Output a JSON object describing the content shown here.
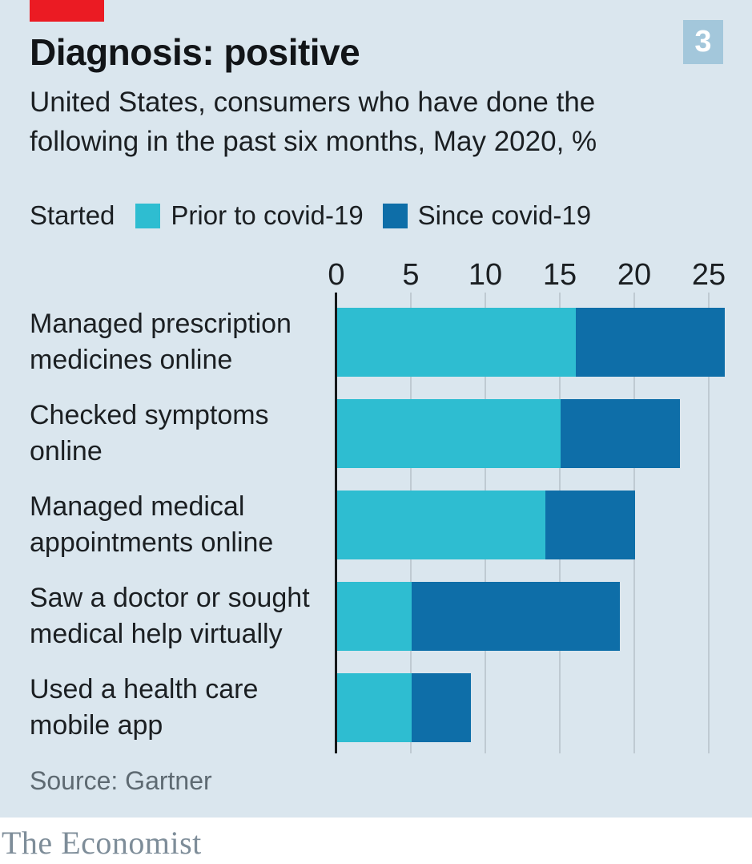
{
  "header": {
    "badge": "3",
    "title": "Diagnosis: positive",
    "subtitle": "United States, consumers who have done the following in the past six months, May 2020, %"
  },
  "legend": {
    "prefix": "Started",
    "items": [
      {
        "label": "Prior to covid-19"
      },
      {
        "label": "Since covid-19"
      }
    ]
  },
  "chart_data": {
    "type": "bar",
    "orientation": "horizontal",
    "stacked": true,
    "title": "Diagnosis: positive",
    "subtitle": "United States, consumers who have done the following in the past six months, May 2020, %",
    "categories": [
      "Managed prescription medicines online",
      "Checked symptoms online",
      "Managed medical appointments online",
      "Saw a doctor or sought medical help virtually",
      "Used a health care mobile app"
    ],
    "category_lines": [
      [
        "Managed prescription",
        "medicines online"
      ],
      [
        "Checked symptoms",
        "online"
      ],
      [
        "Managed medical",
        "appointments online"
      ],
      [
        "Saw a doctor or sought",
        "medical help virtually"
      ],
      [
        "Used a health care",
        "mobile app"
      ]
    ],
    "series": [
      {
        "name": "Prior to covid-19",
        "color": "#2ebdd1",
        "values": [
          16,
          15,
          14,
          5,
          5
        ]
      },
      {
        "name": "Since covid-19",
        "color": "#0e6ea8",
        "values": [
          10,
          8,
          6,
          14,
          4
        ]
      }
    ],
    "totals": [
      26,
      23,
      20,
      19,
      9
    ],
    "x_ticks": [
      0,
      5,
      10,
      15,
      20,
      25
    ],
    "xlim": [
      0,
      26
    ],
    "unit": "%",
    "grid": true,
    "legend_position": "top"
  },
  "source": "Source: Gartner",
  "footer": {
    "logo": "The Economist"
  },
  "colors": {
    "background": "#dae6ee",
    "red_tab": "#eb1b23",
    "badge_bg": "#a3c7db",
    "gridline": "#bfcad2",
    "axis": "#16191b"
  }
}
